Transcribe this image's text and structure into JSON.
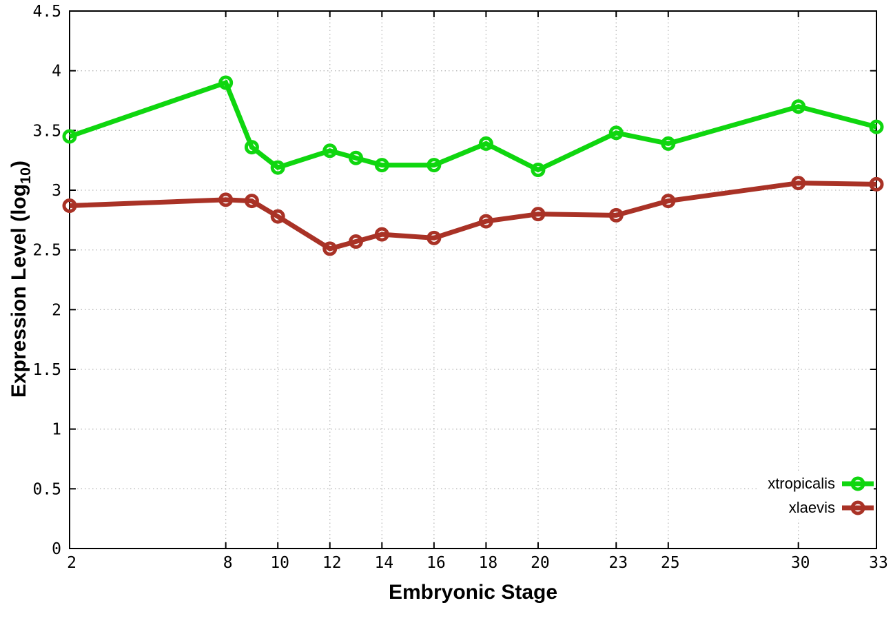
{
  "chart_data": {
    "type": "line",
    "title": "",
    "xlabel": "Embryonic Stage",
    "ylabel": "Expression Level (log10)",
    "ylabel_parts": {
      "pre": "Expression Level (log",
      "sub": "10",
      "post": ")"
    },
    "xlim": [
      2,
      33
    ],
    "ylim": [
      0,
      4.5
    ],
    "grid": true,
    "grid_style": "dotted",
    "legend_position": "bottom-right-inside",
    "x": [
      2,
      8,
      9,
      10,
      12,
      13,
      14,
      16,
      18,
      20,
      23,
      25,
      30,
      33
    ],
    "xticks": [
      2,
      8,
      10,
      12,
      14,
      16,
      18,
      20,
      23,
      25,
      30,
      33
    ],
    "xtick_labels": [
      "2",
      "8",
      "10",
      "12",
      "14",
      "16",
      "18",
      "20",
      "23",
      "25",
      "30",
      "33"
    ],
    "yticks": [
      0,
      0.5,
      1,
      1.5,
      2,
      2.5,
      3,
      3.5,
      4,
      4.5
    ],
    "ytick_labels": [
      "0",
      "0.5",
      "1",
      "1.5",
      "2",
      "2.5",
      "3",
      "3.5",
      "4",
      "4.5"
    ],
    "series": [
      {
        "name": "xtropicalis",
        "color": "#0fd60f",
        "marker": "open-circle",
        "values": [
          3.45,
          3.9,
          3.36,
          3.19,
          3.33,
          3.27,
          3.21,
          3.21,
          3.39,
          3.17,
          3.48,
          3.39,
          3.7,
          3.53
        ]
      },
      {
        "name": "xlaevis",
        "color": "#a93226",
        "marker": "open-circle",
        "values": [
          2.87,
          2.92,
          2.91,
          2.78,
          2.51,
          2.57,
          2.63,
          2.6,
          2.74,
          2.8,
          2.79,
          2.91,
          3.06,
          3.05
        ]
      }
    ]
  },
  "colors": {
    "background": "#ffffff",
    "axis": "#000000",
    "grid": "#b9b9b9",
    "text": "#000000"
  }
}
